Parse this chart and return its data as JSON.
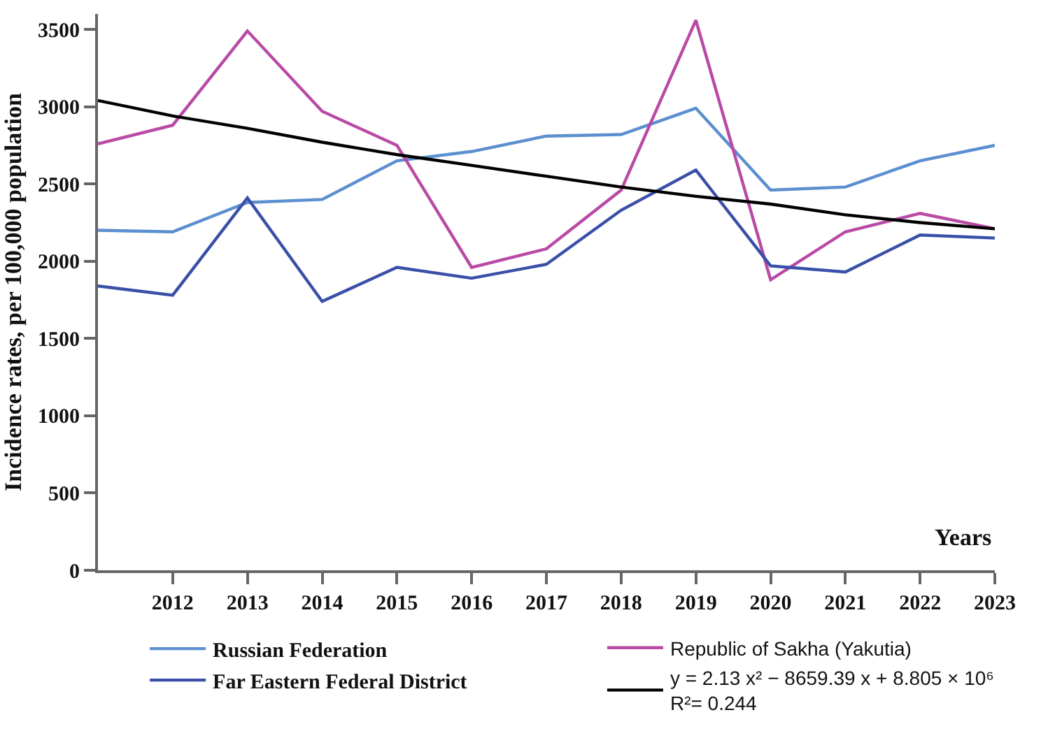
{
  "chart_data": {
    "type": "line",
    "xlabel": "Years",
    "ylabel": "Incidence rates, per 100,000 population",
    "x": [
      2011,
      2012,
      2013,
      2014,
      2015,
      2016,
      2017,
      2018,
      2019,
      2020,
      2021,
      2022,
      2023
    ],
    "series": [
      {
        "name": "Russian Federation",
        "color": "#5b8fd0",
        "values": [
          2200,
          2190,
          2380,
          2400,
          2650,
          2710,
          2810,
          2820,
          2990,
          2460,
          2480,
          2650,
          2750
        ]
      },
      {
        "name": "Republic of Sakha (Yakutia)",
        "color": "#b94aa5",
        "values": [
          2760,
          2880,
          3490,
          2970,
          2750,
          1960,
          2080,
          2460,
          3560,
          1880,
          2190,
          2310,
          2210
        ]
      },
      {
        "name": "Far Eastern Federal District",
        "color": "#3a4fa8",
        "values": [
          1840,
          1780,
          2410,
          1740,
          1960,
          1890,
          1980,
          2330,
          2590,
          1970,
          1930,
          2170,
          2150
        ]
      },
      {
        "name": "y = 2.13 x² − 8659.39 x + 8.805 × 10⁶\nR²= 0.244",
        "color": "#000000",
        "values": [
          3040,
          2940,
          2860,
          2770,
          2690,
          2620,
          2550,
          2480,
          2420,
          2370,
          2300,
          2250,
          2210
        ]
      }
    ],
    "xlim": [
      2011,
      2023
    ],
    "xticks": [
      2012,
      2013,
      2014,
      2015,
      2016,
      2017,
      2018,
      2019,
      2020,
      2021,
      2022,
      2023
    ],
    "ylim": [
      0,
      3600
    ],
    "yticks": [
      0,
      500,
      1000,
      1500,
      2000,
      2500,
      3000,
      3500
    ],
    "legend": "bottom",
    "marker": "none",
    "line_style": "solid"
  }
}
